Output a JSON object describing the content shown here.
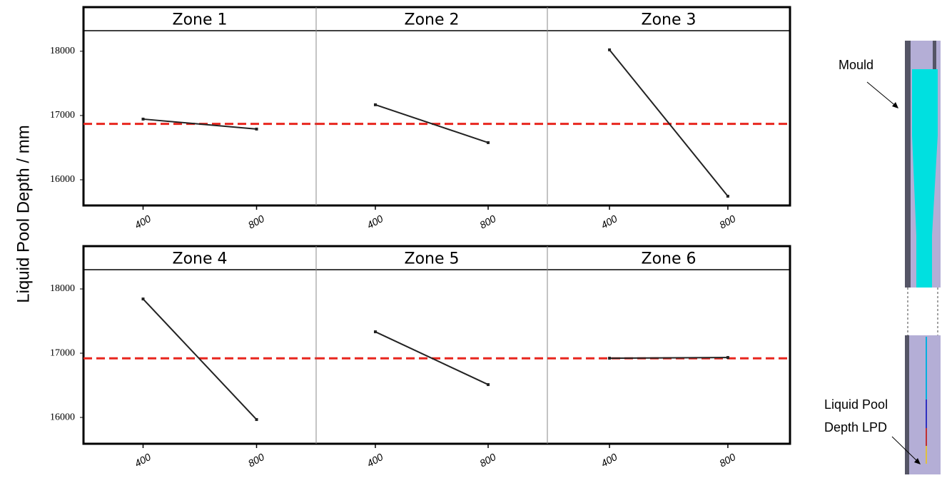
{
  "ylabel": "Liquid Pool Depth / mm",
  "annotations": {
    "mould": "Mould",
    "lpd": [
      "Liquid Pool",
      "Depth LPD"
    ]
  },
  "chart_data": [
    {
      "type": "line",
      "title": "Zone 1",
      "x": [
        400,
        800
      ],
      "values": [
        16944,
        16789
      ],
      "color": "#222222",
      "xlim": [
        190,
        1010
      ],
      "xticks": [
        400,
        800
      ],
      "ylim": [
        15600,
        18320
      ],
      "yticks": [
        16000,
        17000,
        18000
      ],
      "reference_line": 16870,
      "reference_color": "#e8261e"
    },
    {
      "type": "line",
      "title": "Zone 2",
      "x": [
        400,
        800
      ],
      "values": [
        17167,
        16578
      ],
      "color": "#222222",
      "xlim": [
        190,
        1010
      ],
      "xticks": [
        400,
        800
      ],
      "ylim": [
        15600,
        18320
      ],
      "reference_line": 16870,
      "reference_color": "#e8261e"
    },
    {
      "type": "line",
      "title": "Zone 3",
      "x": [
        400,
        800
      ],
      "values": [
        18022,
        15744
      ],
      "color": "#222222",
      "xlim": [
        190,
        1010
      ],
      "xticks": [
        400,
        800
      ],
      "ylim": [
        15600,
        18320
      ],
      "reference_line": 16870,
      "reference_color": "#e8261e"
    },
    {
      "type": "line",
      "title": "Zone 4",
      "x": [
        400,
        800
      ],
      "values": [
        17844,
        15967
      ],
      "color": "#222222",
      "xlim": [
        190,
        1010
      ],
      "xticks": [
        400,
        800
      ],
      "ylim": [
        15590,
        18300
      ],
      "yticks": [
        16000,
        17000,
        18000
      ],
      "reference_line": 16920,
      "reference_color": "#e8261e"
    },
    {
      "type": "line",
      "title": "Zone 5",
      "x": [
        400,
        800
      ],
      "values": [
        17333,
        16511
      ],
      "color": "#222222",
      "xlim": [
        190,
        1010
      ],
      "xticks": [
        400,
        800
      ],
      "ylim": [
        15590,
        18300
      ],
      "reference_line": 16920,
      "reference_color": "#e8261e"
    },
    {
      "type": "line",
      "title": "Zone 6",
      "x": [
        400,
        800
      ],
      "values": [
        16922,
        16933
      ],
      "color": "#222222",
      "xlim": [
        190,
        1010
      ],
      "xticks": [
        400,
        800
      ],
      "ylim": [
        15590,
        18300
      ],
      "reference_line": 16920,
      "reference_color": "#e8261e"
    }
  ]
}
